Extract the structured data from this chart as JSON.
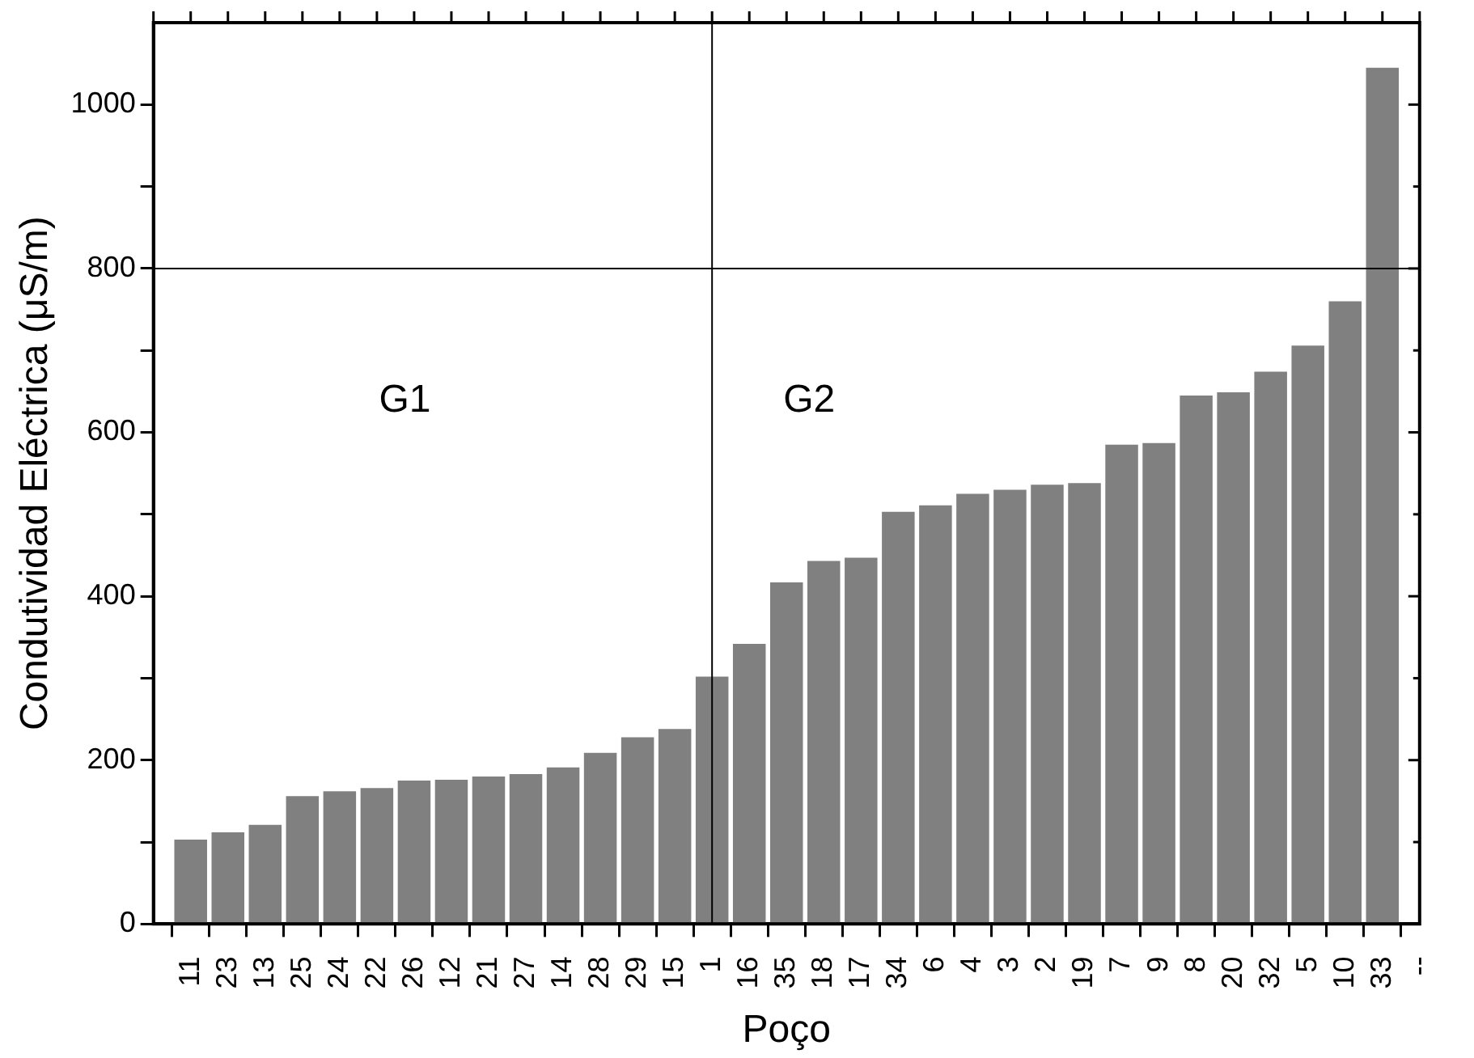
{
  "chart_data": {
    "type": "bar",
    "xlabel": "Poço",
    "ylabel": "Condutividad Eléctrica (μS/m)",
    "categories": [
      null,
      "11",
      "23",
      "13",
      "25",
      "24",
      "22",
      "26",
      "12",
      "21",
      "27",
      "14",
      "28",
      "29",
      "15",
      "1",
      "16",
      "35",
      "18",
      "17",
      "34",
      "6",
      "4",
      "3",
      "2",
      "19",
      "7",
      "9",
      "8",
      "20",
      "32",
      "5",
      "10",
      "33",
      "--"
    ],
    "values": [
      null,
      103,
      112,
      121,
      156,
      162,
      166,
      175,
      176,
      180,
      183,
      191,
      209,
      228,
      238,
      302,
      342,
      417,
      443,
      447,
      503,
      511,
      525,
      530,
      536,
      538,
      585,
      587,
      645,
      649,
      674,
      706,
      760,
      1045,
      null
    ],
    "color": "#808080",
    "ylim": [
      0,
      1100
    ],
    "yticks": [
      0,
      {
        "value": 100,
        "label": null
      },
      200,
      {
        "value": 300,
        "label": null
      },
      400,
      {
        "value": 500,
        "label": null
      },
      600,
      {
        "value": 700,
        "label": null
      },
      800,
      {
        "value": 900,
        "label": null
      },
      1000
    ],
    "ref_lines": [
      {
        "axis": "y",
        "value": 800,
        "color": "#000000"
      },
      {
        "axis": "x",
        "value": "1",
        "color": "#000000"
      }
    ],
    "annotations": [
      "G1",
      "G2"
    ],
    "grid": false,
    "legend": false
  }
}
